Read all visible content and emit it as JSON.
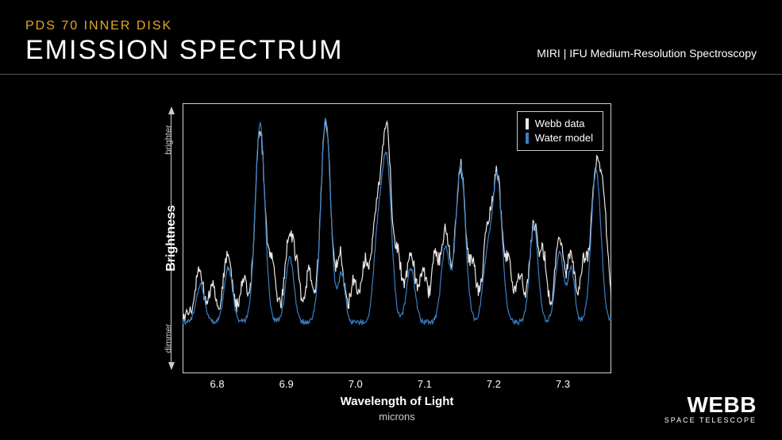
{
  "header": {
    "subtitle": "PDS 70 INNER DISK",
    "title": "EMISSION SPECTRUM",
    "instrument": "MIRI | IFU Medium-Resolution Spectroscopy"
  },
  "logo": {
    "main": "WEBB",
    "sub": "SPACE TELESCOPE"
  },
  "chart": {
    "type": "line",
    "xlabel": "Wavelength of Light",
    "xunit": "microns",
    "ylabel": "Brightness",
    "yhint_high": "brighter",
    "yhint_low": "dimmer",
    "xlim": [
      6.75,
      7.37
    ],
    "ylim": [
      0,
      1
    ],
    "xticks": [
      6.8,
      6.9,
      7.0,
      7.1,
      7.2,
      7.3
    ],
    "background_color": "#000000",
    "border_color": "#d0d0d0",
    "text_color": "#ffffff",
    "axis_hint_color": "#cccccc",
    "tick_fontsize": 13,
    "label_fontsize": 15,
    "line_width": 1.2,
    "legend": {
      "border_color": "#cccccc",
      "position": "top-right",
      "items": [
        {
          "label": "Webb data",
          "color": "#e8e8e8"
        },
        {
          "label": "Water model",
          "color": "#3b7fc4"
        }
      ]
    },
    "series": [
      {
        "name": "Webb data",
        "color": "#e8e8e8",
        "baseline": 0.21,
        "noise": 0.055,
        "peaks": [
          {
            "x": 6.774,
            "h": 0.16,
            "w": 0.006
          },
          {
            "x": 6.793,
            "h": 0.11,
            "w": 0.005
          },
          {
            "x": 6.815,
            "h": 0.22,
            "w": 0.006
          },
          {
            "x": 6.838,
            "h": 0.14,
            "w": 0.005
          },
          {
            "x": 6.862,
            "h": 0.69,
            "w": 0.007
          },
          {
            "x": 6.88,
            "h": 0.18,
            "w": 0.005
          },
          {
            "x": 6.904,
            "h": 0.3,
            "w": 0.006
          },
          {
            "x": 6.915,
            "h": 0.15,
            "w": 0.005
          },
          {
            "x": 6.933,
            "h": 0.17,
            "w": 0.005
          },
          {
            "x": 6.957,
            "h": 0.72,
            "w": 0.007
          },
          {
            "x": 6.978,
            "h": 0.23,
            "w": 0.005
          },
          {
            "x": 6.998,
            "h": 0.14,
            "w": 0.005
          },
          {
            "x": 7.014,
            "h": 0.2,
            "w": 0.005
          },
          {
            "x": 7.03,
            "h": 0.35,
            "w": 0.006
          },
          {
            "x": 7.045,
            "h": 0.7,
            "w": 0.007
          },
          {
            "x": 7.062,
            "h": 0.2,
            "w": 0.005
          },
          {
            "x": 7.08,
            "h": 0.24,
            "w": 0.006
          },
          {
            "x": 7.098,
            "h": 0.17,
            "w": 0.005
          },
          {
            "x": 7.115,
            "h": 0.22,
            "w": 0.005
          },
          {
            "x": 7.13,
            "h": 0.32,
            "w": 0.006
          },
          {
            "x": 7.152,
            "h": 0.56,
            "w": 0.007
          },
          {
            "x": 7.17,
            "h": 0.19,
            "w": 0.005
          },
          {
            "x": 7.19,
            "h": 0.28,
            "w": 0.006
          },
          {
            "x": 7.205,
            "h": 0.52,
            "w": 0.007
          },
          {
            "x": 7.222,
            "h": 0.18,
            "w": 0.005
          },
          {
            "x": 7.238,
            "h": 0.16,
            "w": 0.005
          },
          {
            "x": 7.258,
            "h": 0.34,
            "w": 0.006
          },
          {
            "x": 7.272,
            "h": 0.22,
            "w": 0.005
          },
          {
            "x": 7.295,
            "h": 0.3,
            "w": 0.006
          },
          {
            "x": 7.312,
            "h": 0.24,
            "w": 0.005
          },
          {
            "x": 7.33,
            "h": 0.2,
            "w": 0.005
          },
          {
            "x": 7.348,
            "h": 0.54,
            "w": 0.007
          },
          {
            "x": 7.36,
            "h": 0.3,
            "w": 0.006
          }
        ]
      },
      {
        "name": "Water model",
        "color": "#3b7fc4",
        "baseline": 0.19,
        "noise": 0.02,
        "peaks": [
          {
            "x": 6.776,
            "h": 0.14,
            "w": 0.006
          },
          {
            "x": 6.816,
            "h": 0.2,
            "w": 0.006
          },
          {
            "x": 6.862,
            "h": 0.73,
            "w": 0.007
          },
          {
            "x": 6.905,
            "h": 0.24,
            "w": 0.006
          },
          {
            "x": 6.957,
            "h": 0.75,
            "w": 0.007
          },
          {
            "x": 6.98,
            "h": 0.18,
            "w": 0.005
          },
          {
            "x": 7.032,
            "h": 0.28,
            "w": 0.006
          },
          {
            "x": 7.045,
            "h": 0.6,
            "w": 0.007
          },
          {
            "x": 7.08,
            "h": 0.2,
            "w": 0.006
          },
          {
            "x": 7.13,
            "h": 0.28,
            "w": 0.006
          },
          {
            "x": 7.152,
            "h": 0.58,
            "w": 0.007
          },
          {
            "x": 7.19,
            "h": 0.22,
            "w": 0.006
          },
          {
            "x": 7.205,
            "h": 0.54,
            "w": 0.007
          },
          {
            "x": 7.258,
            "h": 0.36,
            "w": 0.006
          },
          {
            "x": 7.295,
            "h": 0.26,
            "w": 0.006
          },
          {
            "x": 7.312,
            "h": 0.2,
            "w": 0.005
          },
          {
            "x": 7.348,
            "h": 0.56,
            "w": 0.007
          }
        ]
      }
    ]
  }
}
